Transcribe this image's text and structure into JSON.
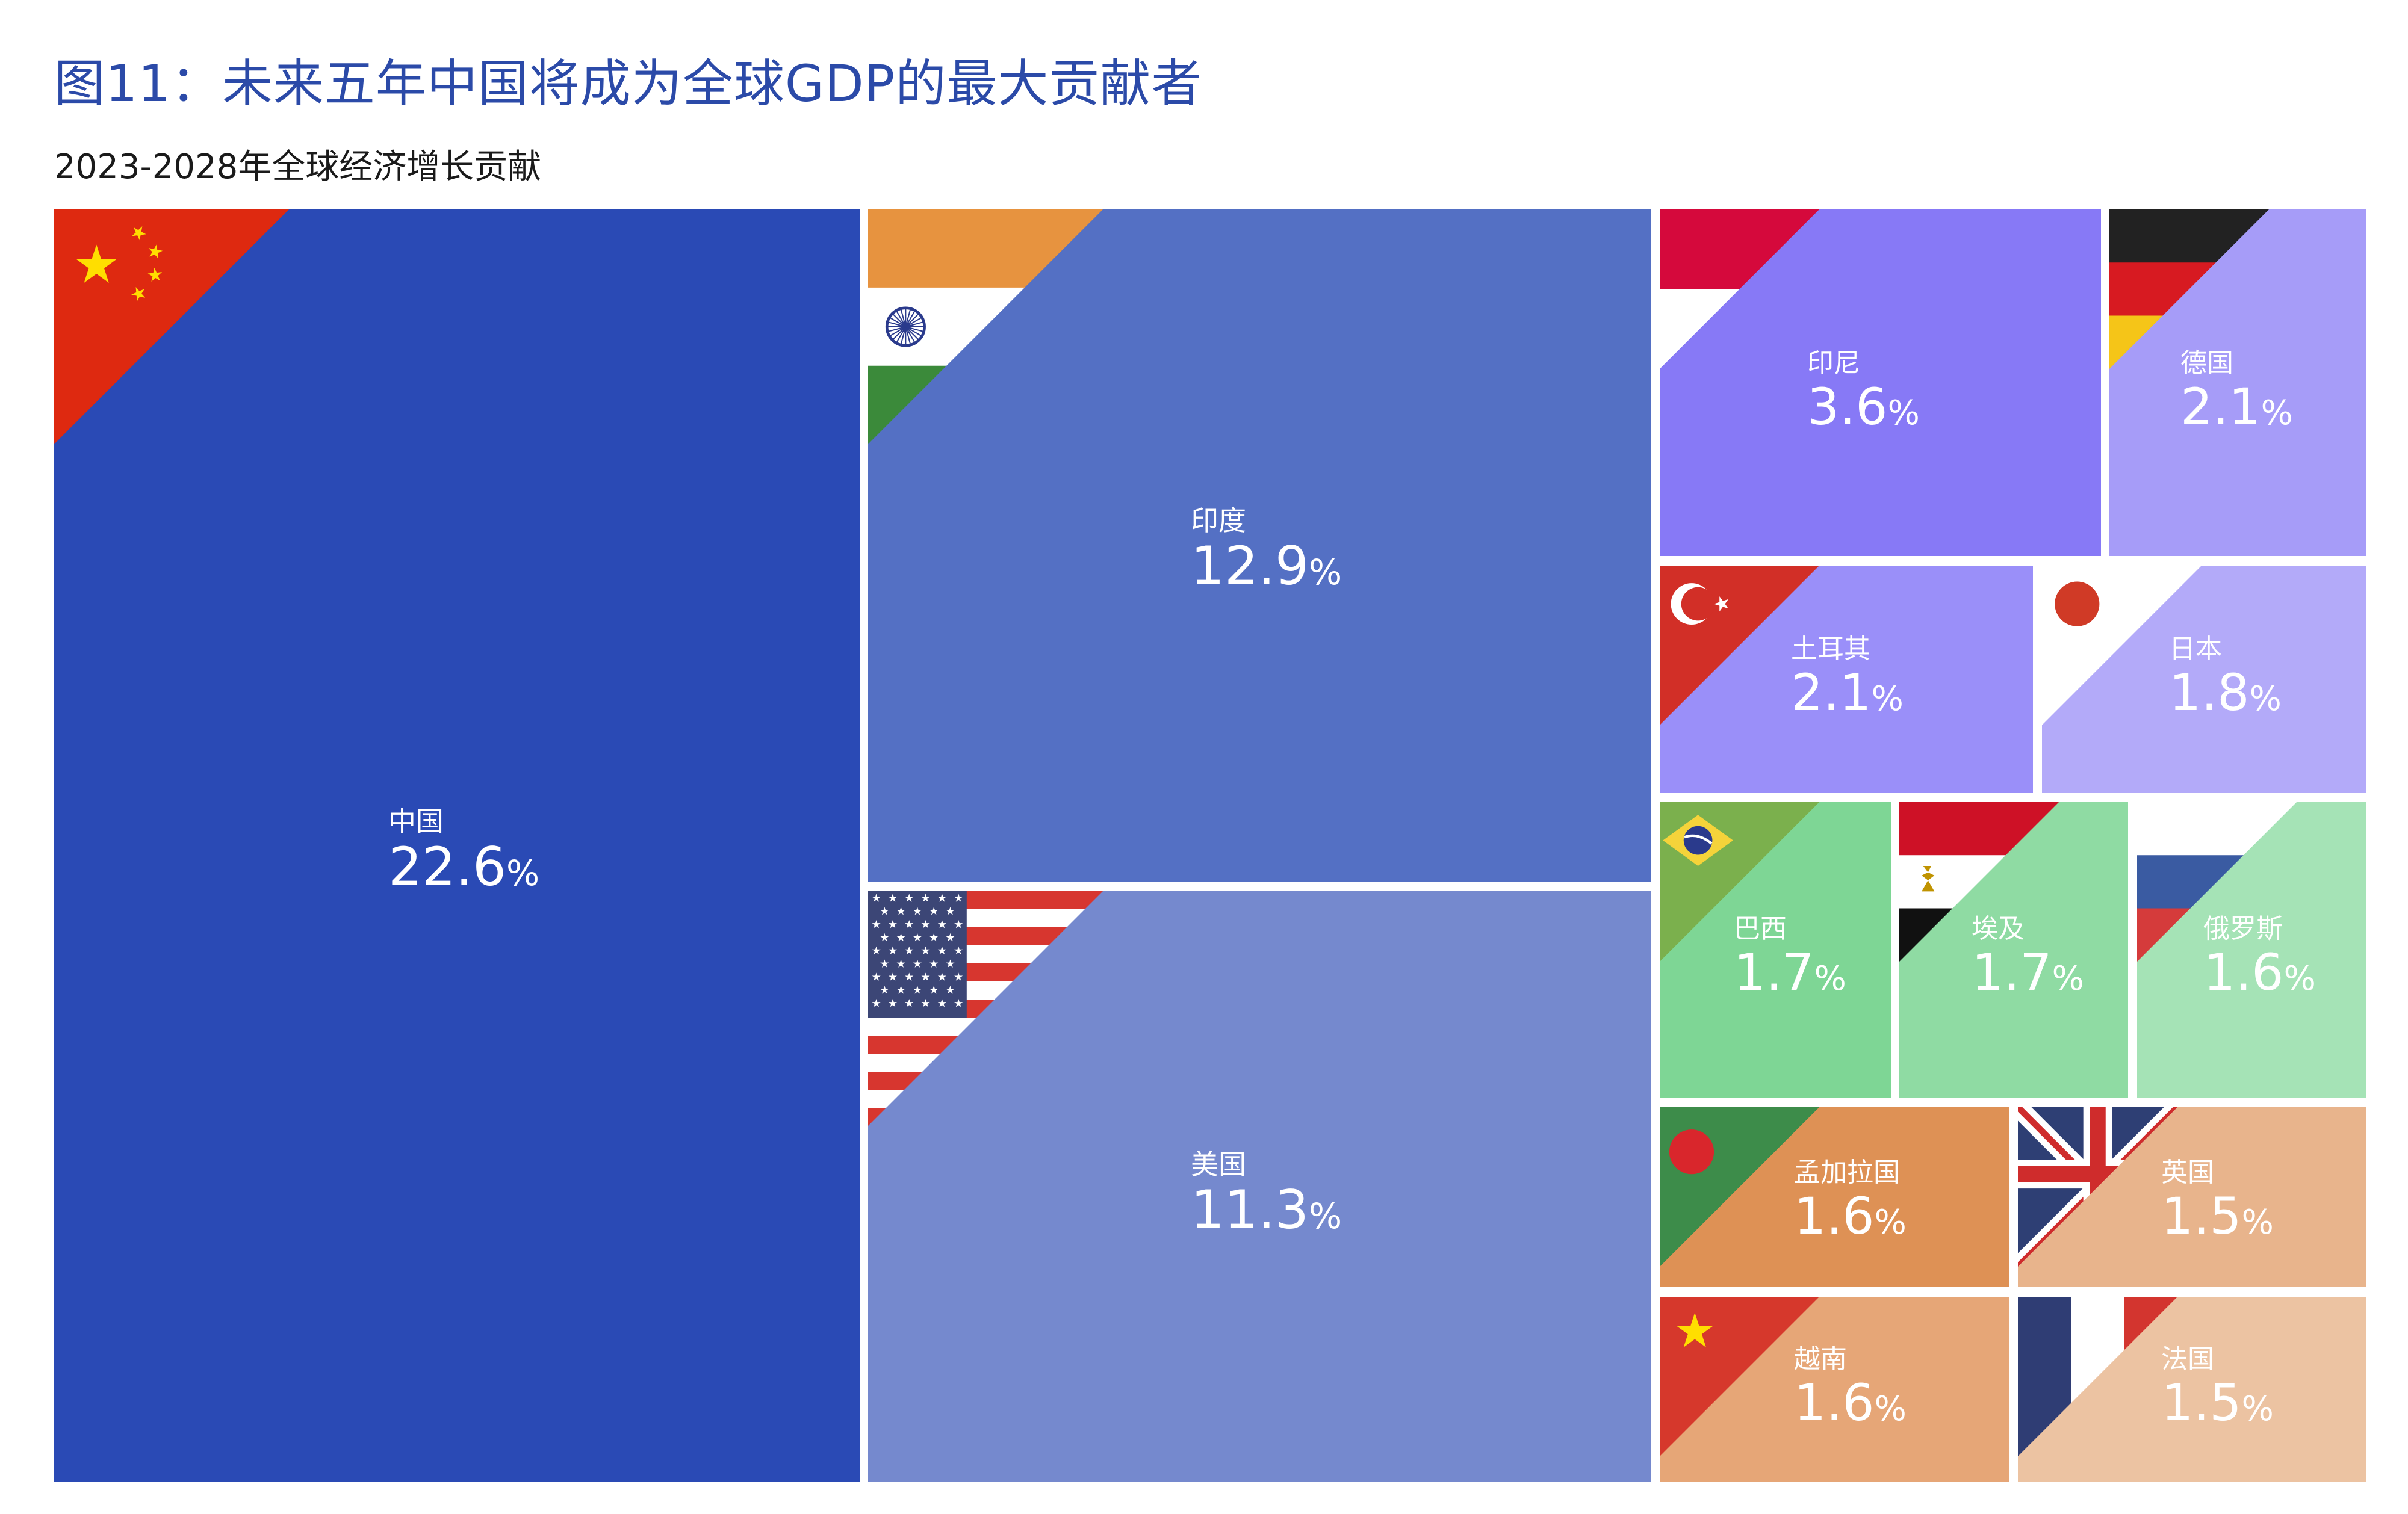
{
  "title": "图11：未来五年中国将成为全球GDP的最大贡献者",
  "subtitle": "2023-2028年全球经济增长贡献",
  "percent_sign": "%",
  "chart_data": {
    "type": "treemap",
    "title": "图11：未来五年中国将成为全球GDP的最大贡献者",
    "subtitle": "2023-2028年全球经济增长贡献",
    "unit": "%",
    "items": [
      {
        "name": "中国",
        "value": 22.6,
        "value_label": "22.6",
        "color": "#2a4ab5",
        "flag": "china"
      },
      {
        "name": "印度",
        "value": 12.9,
        "value_label": "12.9",
        "color": "#5470c4",
        "flag": "india"
      },
      {
        "name": "美国",
        "value": 11.3,
        "value_label": "11.3",
        "color": "#7589ce",
        "flag": "usa"
      },
      {
        "name": "印尼",
        "value": 3.6,
        "value_label": "3.6",
        "color": "#8779f6",
        "flag": "indonesia"
      },
      {
        "name": "德国",
        "value": 2.1,
        "value_label": "2.1",
        "color": "#a69cf8",
        "flag": "germany"
      },
      {
        "name": "土耳其",
        "value": 2.1,
        "value_label": "2.1",
        "color": "#9a8ff9",
        "flag": "turkey"
      },
      {
        "name": "日本",
        "value": 1.8,
        "value_label": "1.8",
        "color": "#b3aaf9",
        "flag": "japan"
      },
      {
        "name": "巴西",
        "value": 1.7,
        "value_label": "1.7",
        "color": "#7ed695",
        "flag": "brazil"
      },
      {
        "name": "埃及",
        "value": 1.7,
        "value_label": "1.7",
        "color": "#8fdba3",
        "flag": "egypt"
      },
      {
        "name": "俄罗斯",
        "value": 1.6,
        "value_label": "1.6",
        "color": "#a5e3b6",
        "flag": "russia"
      },
      {
        "name": "孟加拉国",
        "value": 1.6,
        "value_label": "1.6",
        "color": "#de9155",
        "flag": "bangladesh"
      },
      {
        "name": "英国",
        "value": 1.5,
        "value_label": "1.5",
        "color": "#e8b48c",
        "flag": "uk"
      },
      {
        "name": "越南",
        "value": 1.6,
        "value_label": "1.6",
        "color": "#e6a677",
        "flag": "vietnam"
      },
      {
        "name": "法国",
        "value": 1.5,
        "value_label": "1.5",
        "color": "#ecc3a2",
        "flag": "france"
      }
    ]
  }
}
